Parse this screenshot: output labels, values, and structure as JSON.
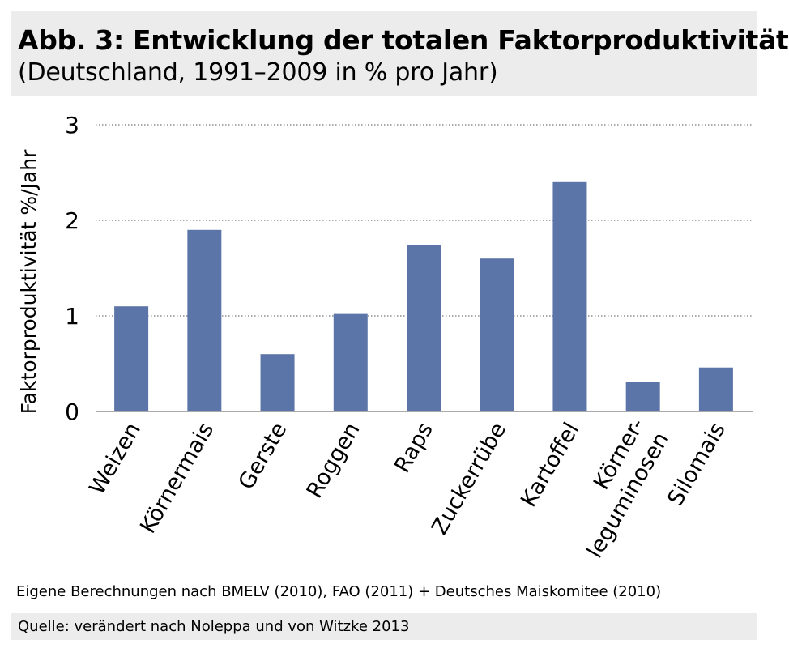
{
  "header": {
    "title": "Abb. 3: Entwicklung der totalen Faktorproduktivität",
    "subtitle": "(Deutschland, 1991–2009 in % pro Jahr)"
  },
  "chart_data": {
    "type": "bar",
    "categories": [
      [
        "Weizen"
      ],
      [
        "Körnermais"
      ],
      [
        "Gerste"
      ],
      [
        "Roggen"
      ],
      [
        "Raps"
      ],
      [
        "Zuckerrübe"
      ],
      [
        "Kartoffel"
      ],
      [
        "Körner-",
        "leguminosen"
      ],
      [
        "Silomais"
      ]
    ],
    "values": [
      1.1,
      1.9,
      0.6,
      1.02,
      1.74,
      1.6,
      2.4,
      0.31,
      0.46
    ],
    "ylabel": "Faktorproduktivität %/Jahr",
    "xlabel": "",
    "ylim": [
      0,
      3
    ],
    "yticks": [
      0,
      1,
      2,
      3
    ],
    "grid": true,
    "bar_color": "#5b75a8",
    "grid_color": "#555555"
  },
  "footer": {
    "note": "Eigene Berechnungen nach BMELV (2010), FAO (2011) + Deutsches Maiskomitee (2010)",
    "source": "Quelle: verändert nach Noleppa und von Witzke 2013"
  }
}
